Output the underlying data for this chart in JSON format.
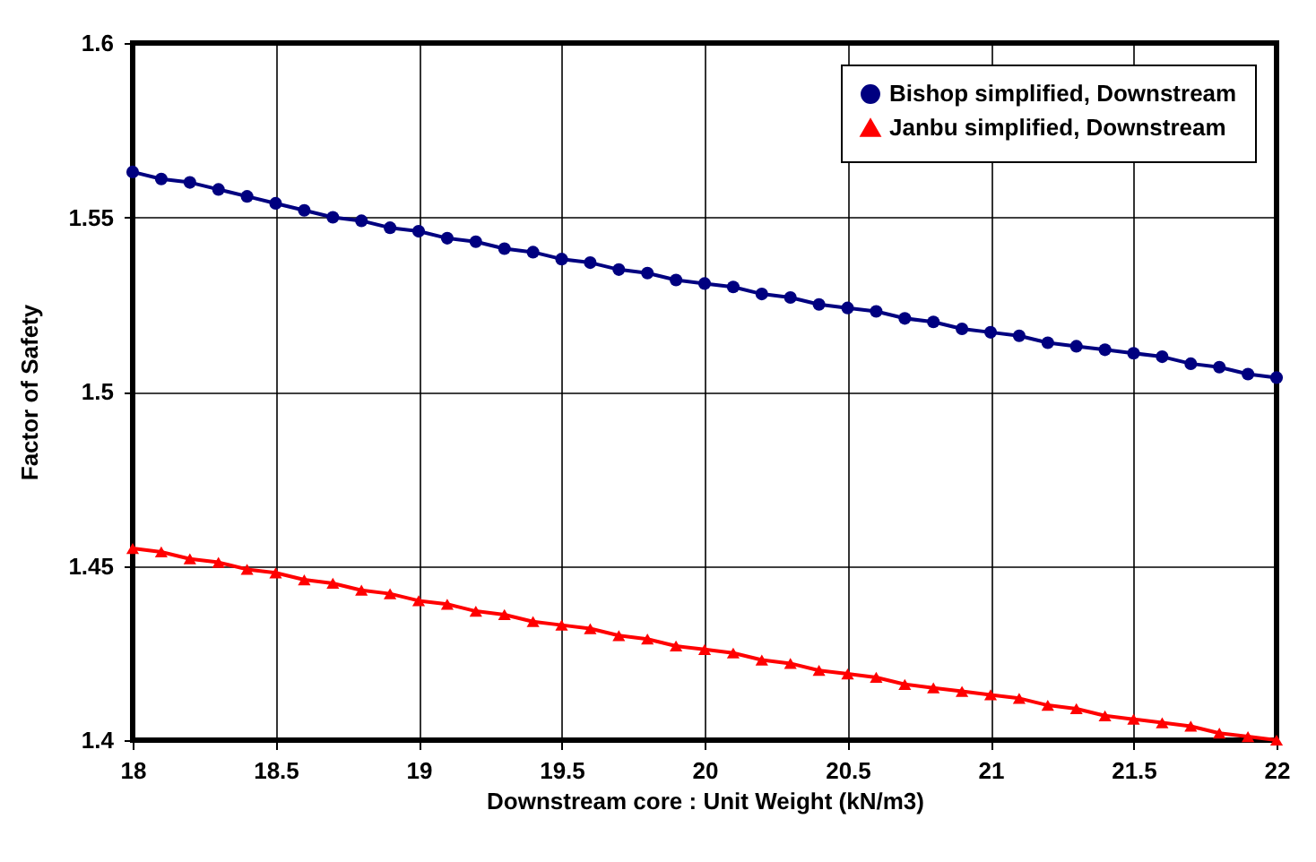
{
  "chart_data": {
    "type": "line",
    "xlabel": "Downstream core : Unit Weight (kN/m3)",
    "ylabel": "Factor of Safety",
    "x": [
      18,
      18.1,
      18.2,
      18.3,
      18.4,
      18.5,
      18.6,
      18.7,
      18.8,
      18.9,
      19,
      19.1,
      19.2,
      19.3,
      19.4,
      19.5,
      19.6,
      19.7,
      19.8,
      19.9,
      20,
      20.1,
      20.2,
      20.3,
      20.4,
      20.5,
      20.6,
      20.7,
      20.8,
      20.9,
      21,
      21.1,
      21.2,
      21.3,
      21.4,
      21.5,
      21.6,
      21.7,
      21.8,
      21.9,
      22
    ],
    "series": [
      {
        "name": "Bishop simplified, Downstream",
        "color": "#000080",
        "marker": "circle",
        "values": [
          1.563,
          1.561,
          1.56,
          1.558,
          1.556,
          1.554,
          1.552,
          1.55,
          1.549,
          1.547,
          1.546,
          1.544,
          1.543,
          1.541,
          1.54,
          1.538,
          1.537,
          1.535,
          1.534,
          1.532,
          1.531,
          1.53,
          1.528,
          1.527,
          1.525,
          1.524,
          1.523,
          1.521,
          1.52,
          1.518,
          1.517,
          1.516,
          1.514,
          1.513,
          1.512,
          1.511,
          1.51,
          1.508,
          1.507,
          1.505,
          1.504
        ]
      },
      {
        "name": "Janbu simplified, Downstream",
        "color": "#ff0000",
        "marker": "triangle",
        "values": [
          1.455,
          1.454,
          1.452,
          1.451,
          1.449,
          1.448,
          1.446,
          1.445,
          1.443,
          1.442,
          1.44,
          1.439,
          1.437,
          1.436,
          1.434,
          1.433,
          1.432,
          1.43,
          1.429,
          1.427,
          1.426,
          1.425,
          1.423,
          1.422,
          1.42,
          1.419,
          1.418,
          1.416,
          1.415,
          1.414,
          1.413,
          1.412,
          1.41,
          1.409,
          1.407,
          1.406,
          1.405,
          1.404,
          1.402,
          1.401,
          1.4
        ]
      }
    ],
    "xlim": [
      18,
      22
    ],
    "xticks": [
      18,
      18.5,
      19,
      19.5,
      20,
      20.5,
      21,
      21.5,
      22
    ],
    "ylim": [
      1.4,
      1.6
    ],
    "yticks": [
      1.4,
      1.45,
      1.5,
      1.55,
      1.6
    ],
    "grid": true,
    "legend": "top right"
  }
}
